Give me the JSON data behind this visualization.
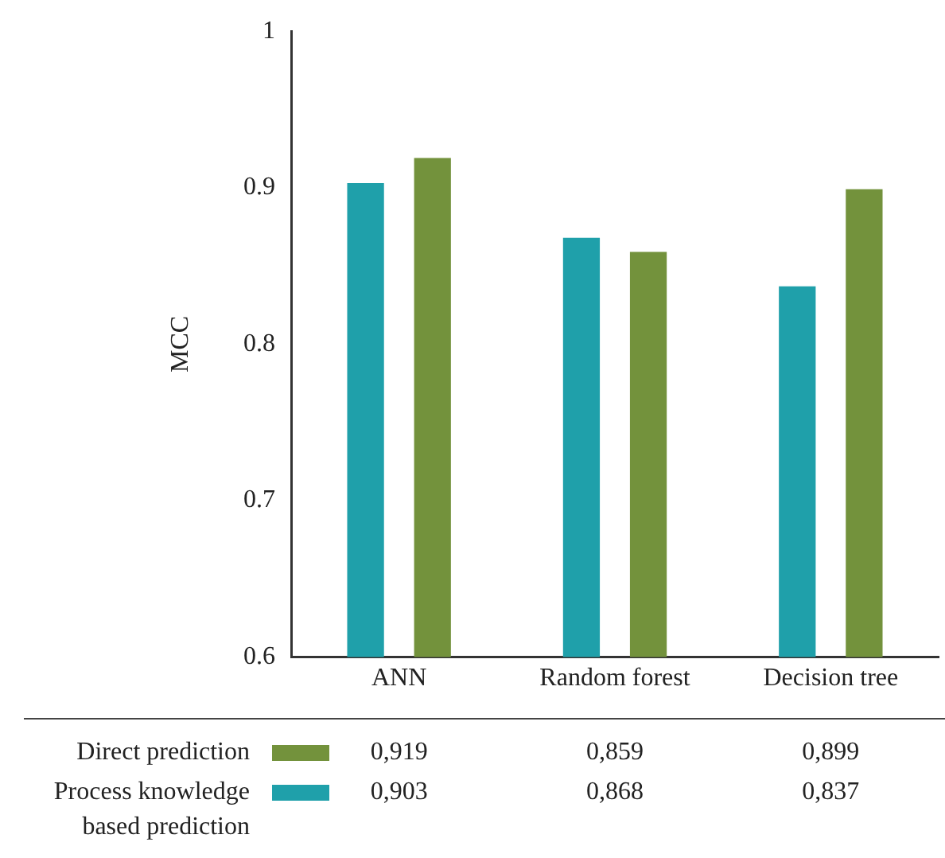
{
  "chart_data": {
    "type": "bar",
    "ylabel": "MCC",
    "categories": [
      "ANN",
      "Random forest",
      "Decision tree"
    ],
    "series": [
      {
        "name": "Process knowledge based prediction",
        "color": "#1fa0aa",
        "values": [
          0.903,
          0.868,
          0.837
        ],
        "value_labels": [
          "0,903",
          "0,868",
          "0,837"
        ]
      },
      {
        "name": "Direct prediction",
        "color": "#73923c",
        "values": [
          0.919,
          0.859,
          0.899
        ],
        "value_labels": [
          "0,919",
          "0,859",
          "0,899"
        ]
      }
    ],
    "ylim": [
      0.6,
      1
    ],
    "yticks": [
      0.6,
      0.7,
      0.8,
      0.9,
      1
    ],
    "grid": false,
    "legend": "bottom"
  }
}
